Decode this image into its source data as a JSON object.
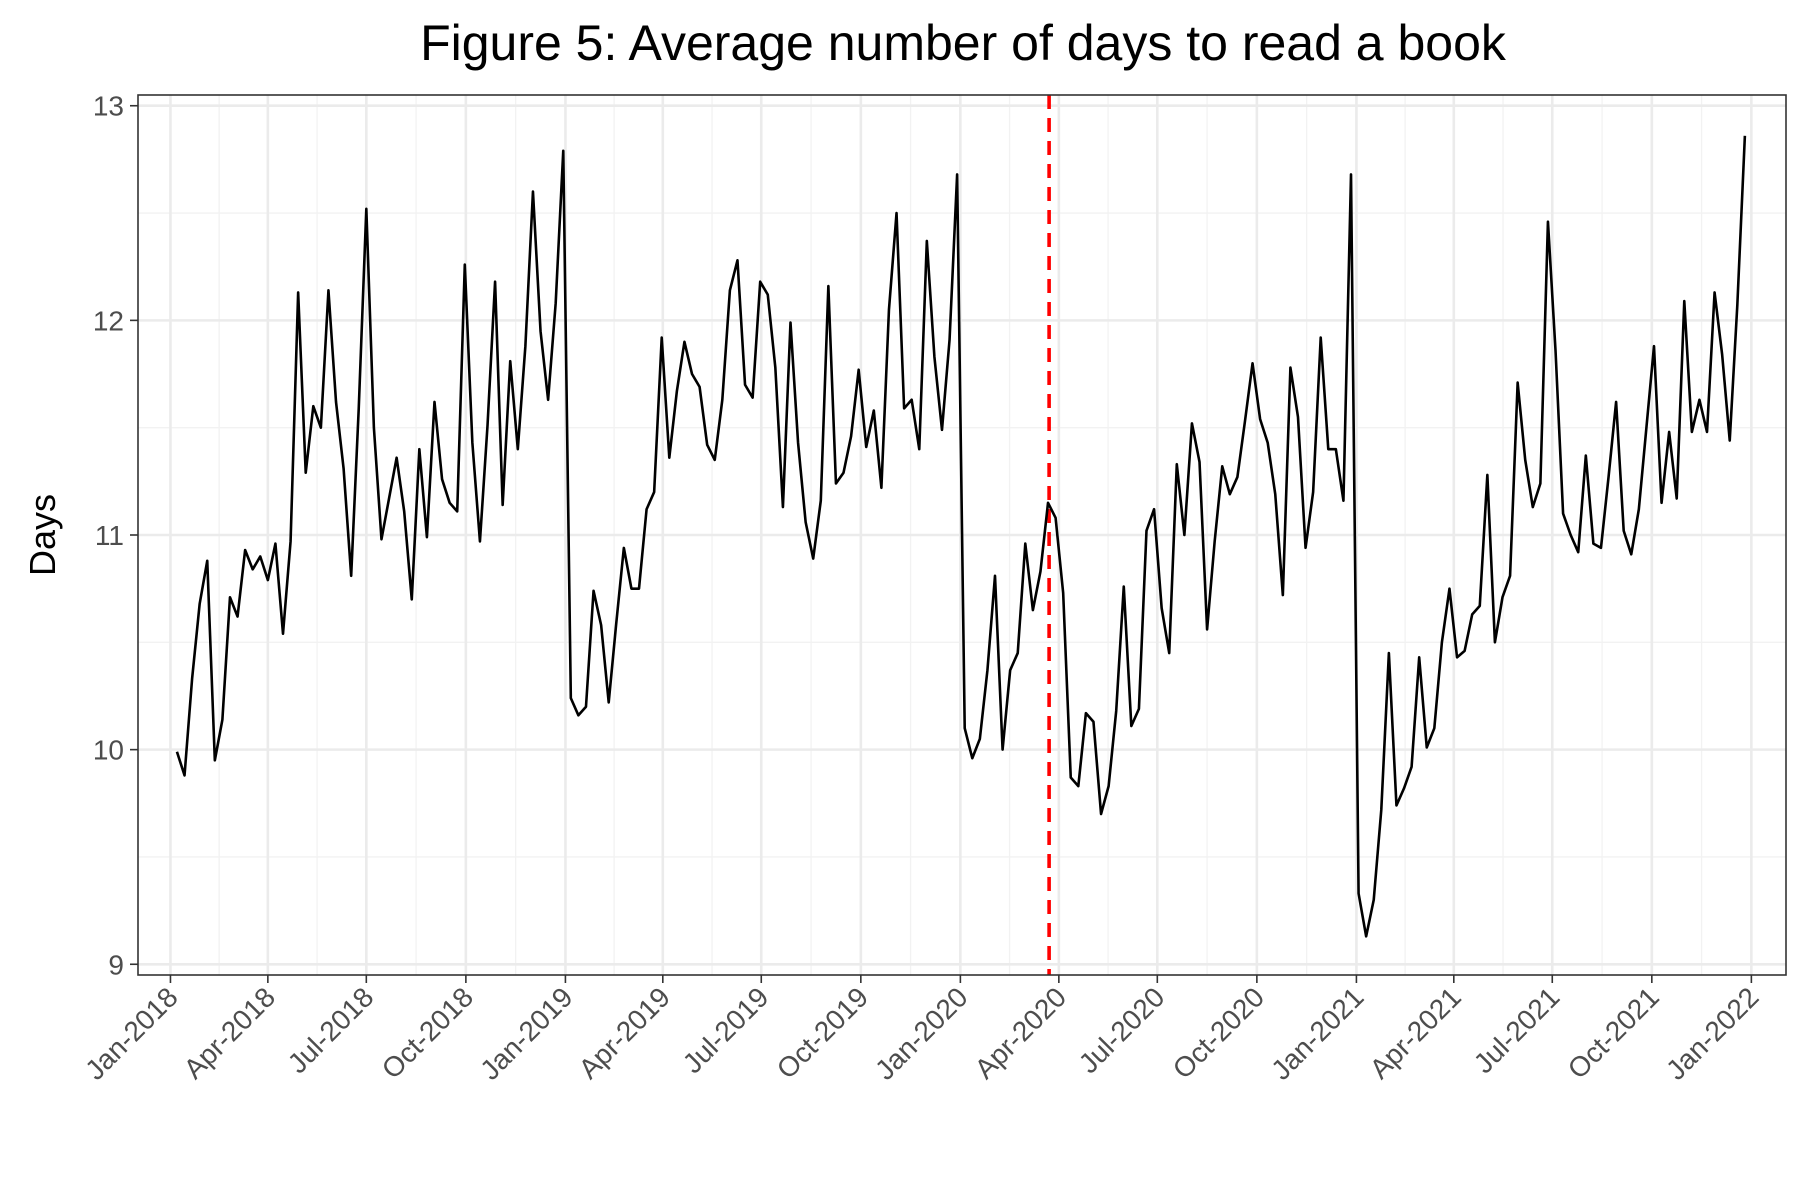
{
  "chart_data": {
    "type": "line",
    "title": "Figure 5: Average number of days to read a book",
    "xlabel": "",
    "ylabel": "Days",
    "ylim": [
      8.95,
      13.05
    ],
    "xlim": [
      "2017-12-02",
      "2022-02-02"
    ],
    "y_ticks": [
      9,
      10,
      11,
      12,
      13
    ],
    "x_ticks": [
      {
        "date": "2018-01-01",
        "label": "Jan-2018"
      },
      {
        "date": "2018-04-01",
        "label": "Apr-2018"
      },
      {
        "date": "2018-07-01",
        "label": "Jul-2018"
      },
      {
        "date": "2018-10-01",
        "label": "Oct-2018"
      },
      {
        "date": "2019-01-01",
        "label": "Jan-2019"
      },
      {
        "date": "2019-04-01",
        "label": "Apr-2019"
      },
      {
        "date": "2019-07-01",
        "label": "Jul-2019"
      },
      {
        "date": "2019-10-01",
        "label": "Oct-2019"
      },
      {
        "date": "2020-01-01",
        "label": "Jan-2020"
      },
      {
        "date": "2020-04-01",
        "label": "Apr-2020"
      },
      {
        "date": "2020-07-01",
        "label": "Jul-2020"
      },
      {
        "date": "2020-10-01",
        "label": "Oct-2020"
      },
      {
        "date": "2021-01-01",
        "label": "Jan-2021"
      },
      {
        "date": "2021-04-01",
        "label": "Apr-2021"
      },
      {
        "date": "2021-07-01",
        "label": "Jul-2021"
      },
      {
        "date": "2021-10-01",
        "label": "Oct-2021"
      },
      {
        "date": "2022-01-01",
        "label": "Jan-2022"
      }
    ],
    "grid": true,
    "line_color": "#000000",
    "reference_line": {
      "date": "2020-03-23",
      "color": "#ff0000",
      "style": "dashed"
    },
    "series": [
      {
        "x": [
          "2018-01-07",
          "2018-01-14",
          "2018-01-21",
          "2018-01-28",
          "2018-02-04",
          "2018-02-11",
          "2018-02-18",
          "2018-02-25",
          "2018-03-04",
          "2018-03-11",
          "2018-03-18",
          "2018-03-25",
          "2018-04-01",
          "2018-04-08",
          "2018-04-15",
          "2018-04-22",
          "2018-04-29",
          "2018-05-06",
          "2018-05-13",
          "2018-05-20",
          "2018-05-27",
          "2018-06-03",
          "2018-06-10",
          "2018-06-17",
          "2018-06-24",
          "2018-07-01",
          "2018-07-08",
          "2018-07-15",
          "2018-07-22",
          "2018-07-29",
          "2018-08-05",
          "2018-08-12",
          "2018-08-19",
          "2018-08-26",
          "2018-09-02",
          "2018-09-09",
          "2018-09-16",
          "2018-09-23",
          "2018-09-30",
          "2018-10-07",
          "2018-10-14",
          "2018-10-21",
          "2018-10-28",
          "2018-11-04",
          "2018-11-11",
          "2018-11-18",
          "2018-11-25",
          "2018-12-02",
          "2018-12-09",
          "2018-12-16",
          "2018-12-23",
          "2018-12-30",
          "2019-01-06",
          "2019-01-13",
          "2019-01-20",
          "2019-01-27",
          "2019-02-03",
          "2019-02-10",
          "2019-02-17",
          "2019-02-24",
          "2019-03-03",
          "2019-03-10",
          "2019-03-17",
          "2019-03-24",
          "2019-03-31",
          "2019-04-07",
          "2019-04-14",
          "2019-04-21",
          "2019-04-28",
          "2019-05-05",
          "2019-05-12",
          "2019-05-19",
          "2019-05-26",
          "2019-06-02",
          "2019-06-09",
          "2019-06-16",
          "2019-06-23",
          "2019-06-30",
          "2019-07-07",
          "2019-07-14",
          "2019-07-21",
          "2019-07-28",
          "2019-08-04",
          "2019-08-11",
          "2019-08-18",
          "2019-08-25",
          "2019-09-01",
          "2019-09-08",
          "2019-09-15",
          "2019-09-22",
          "2019-09-29",
          "2019-10-06",
          "2019-10-13",
          "2019-10-20",
          "2019-10-27",
          "2019-11-03",
          "2019-11-10",
          "2019-11-17",
          "2019-11-24",
          "2019-12-01",
          "2019-12-08",
          "2019-12-15",
          "2019-12-22",
          "2019-12-29",
          "2020-01-05",
          "2020-01-12",
          "2020-01-19",
          "2020-01-26",
          "2020-02-02",
          "2020-02-09",
          "2020-02-16",
          "2020-02-23",
          "2020-03-01",
          "2020-03-08",
          "2020-03-15",
          "2020-03-22",
          "2020-03-29",
          "2020-04-05",
          "2020-04-12",
          "2020-04-19",
          "2020-04-26",
          "2020-05-03",
          "2020-05-10",
          "2020-05-17",
          "2020-05-24",
          "2020-05-31",
          "2020-06-07",
          "2020-06-14",
          "2020-06-21",
          "2020-06-28",
          "2020-07-05",
          "2020-07-12",
          "2020-07-19",
          "2020-07-26",
          "2020-08-02",
          "2020-08-09",
          "2020-08-16",
          "2020-08-23",
          "2020-08-30",
          "2020-09-06",
          "2020-09-13",
          "2020-09-20",
          "2020-09-27",
          "2020-10-04",
          "2020-10-11",
          "2020-10-18",
          "2020-10-25",
          "2020-11-01",
          "2020-11-08",
          "2020-11-15",
          "2020-11-22",
          "2020-11-29",
          "2020-12-06",
          "2020-12-13",
          "2020-12-20",
          "2020-12-27",
          "2021-01-03",
          "2021-01-10",
          "2021-01-17",
          "2021-01-24",
          "2021-01-31",
          "2021-02-07",
          "2021-02-14",
          "2021-02-21",
          "2021-02-28",
          "2021-03-07",
          "2021-03-14",
          "2021-03-21",
          "2021-03-28",
          "2021-04-04",
          "2021-04-11",
          "2021-04-18",
          "2021-04-25",
          "2021-05-02",
          "2021-05-09",
          "2021-05-16",
          "2021-05-23",
          "2021-05-30",
          "2021-06-06",
          "2021-06-13",
          "2021-06-20",
          "2021-06-27",
          "2021-07-04",
          "2021-07-11",
          "2021-07-18",
          "2021-07-25",
          "2021-08-01",
          "2021-08-08",
          "2021-08-15",
          "2021-08-22",
          "2021-08-29",
          "2021-09-05",
          "2021-09-12",
          "2021-09-19",
          "2021-09-26",
          "2021-10-03",
          "2021-10-10",
          "2021-10-17",
          "2021-10-24",
          "2021-10-31",
          "2021-11-07",
          "2021-11-14",
          "2021-11-21",
          "2021-11-28",
          "2021-12-05",
          "2021-12-12",
          "2021-12-19",
          "2021-12-26"
        ],
        "y": [
          9.99,
          9.88,
          10.33,
          10.68,
          10.88,
          9.95,
          10.14,
          10.71,
          10.62,
          10.93,
          10.84,
          10.9,
          10.79,
          10.96,
          10.54,
          10.97,
          12.13,
          11.29,
          11.6,
          11.5,
          12.14,
          11.62,
          11.31,
          10.81,
          11.59,
          12.52,
          11.5,
          10.98,
          11.17,
          11.36,
          11.11,
          10.7,
          11.4,
          10.99,
          11.62,
          11.26,
          11.15,
          11.11,
          12.26,
          11.43,
          10.97,
          11.51,
          12.18,
          11.14,
          11.81,
          11.4,
          11.88,
          12.6,
          11.95,
          11.63,
          12.08,
          12.79,
          10.24,
          10.16,
          10.2,
          10.74,
          10.58,
          10.22,
          10.59,
          10.94,
          10.75,
          10.75,
          11.12,
          11.2,
          11.92,
          11.36,
          11.67,
          11.9,
          11.75,
          11.69,
          11.42,
          11.35,
          11.63,
          12.14,
          12.28,
          11.7,
          11.64,
          12.18,
          12.12,
          11.78,
          11.13,
          11.99,
          11.43,
          11.06,
          10.89,
          11.16,
          12.16,
          11.24,
          11.29,
          11.46,
          11.77,
          11.41,
          11.58,
          11.22,
          12.05,
          12.5,
          11.59,
          11.63,
          11.4,
          12.37,
          11.83,
          11.49,
          11.91,
          12.68,
          10.1,
          9.96,
          10.05,
          10.37,
          10.81,
          10.0,
          10.37,
          10.45,
          10.96,
          10.65,
          10.83,
          11.15,
          11.08,
          10.73,
          9.87,
          9.83,
          10.17,
          10.13,
          9.7,
          9.83,
          10.18,
          10.76,
          10.11,
          10.19,
          11.02,
          11.12,
          10.66,
          10.45,
          11.33,
          11.0,
          11.52,
          11.34,
          10.56,
          10.97,
          11.32,
          11.19,
          11.27,
          11.53,
          11.8,
          11.54,
          11.43,
          11.19,
          10.72,
          11.78,
          11.55,
          10.94,
          11.2,
          11.92,
          11.4,
          11.4,
          11.16,
          12.68,
          9.33,
          9.13,
          9.3,
          9.72,
          10.45,
          9.74,
          9.82,
          9.92,
          10.43,
          10.01,
          10.1,
          10.5,
          10.75,
          10.43,
          10.46,
          10.63,
          10.67,
          11.28,
          10.5,
          10.71,
          10.81,
          11.71,
          11.35,
          11.13,
          11.24,
          12.46,
          11.86,
          11.1,
          11.0,
          10.92,
          11.37,
          10.96,
          10.94,
          11.27,
          11.62,
          11.02,
          10.91,
          11.12,
          11.5,
          11.88,
          11.15,
          11.48,
          11.17,
          12.09,
          11.48,
          11.63,
          11.48,
          12.13,
          11.84,
          11.44,
          12.07,
          12.86
        ]
      }
    ]
  }
}
